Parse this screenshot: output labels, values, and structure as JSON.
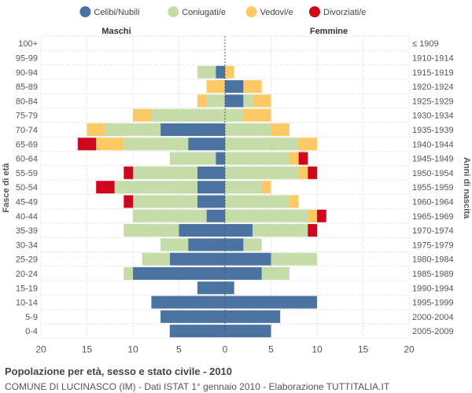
{
  "chart_data": {
    "type": "bar",
    "orientation": "horizontal-population-pyramid",
    "title": "Popolazione per età, sesso e stato civile - 2010",
    "subtitle": "COMUNE DI LUCINASCO (IM) - Dati ISTAT 1° gennaio 2010 - Elaborazione TUTTITALIA.IT",
    "left_header": "Maschi",
    "right_header": "Femmine",
    "ylabel_left": "Fasce di età",
    "ylabel_right": "Anni di nascita",
    "xlim": [
      -20,
      20
    ],
    "x_ticks": [
      -20,
      -15,
      -10,
      -5,
      0,
      5,
      10,
      15,
      20
    ],
    "x_tick_labels": [
      "20",
      "15",
      "10",
      "5",
      "0",
      "5",
      "10",
      "15",
      "20"
    ],
    "legend_position": "top",
    "series": [
      {
        "key": "celibi",
        "name": "Celibi/Nubili",
        "color": "#4a73a2"
      },
      {
        "key": "coniugati",
        "name": "Coniugati/e",
        "color": "#c5dba8"
      },
      {
        "key": "vedovi",
        "name": "Vedovi/e",
        "color": "#fdc965"
      },
      {
        "key": "divorziati",
        "name": "Divorziati/e",
        "color": "#d0061d"
      }
    ],
    "age_groups": [
      "100+",
      "95-99",
      "90-94",
      "85-89",
      "80-84",
      "75-79",
      "70-74",
      "65-69",
      "60-64",
      "55-59",
      "50-54",
      "45-49",
      "40-44",
      "35-39",
      "30-34",
      "25-29",
      "20-24",
      "15-19",
      "10-14",
      "5-9",
      "0-4"
    ],
    "birth_years": [
      "≤ 1909",
      "1910-1914",
      "1915-1919",
      "1920-1924",
      "1925-1929",
      "1930-1934",
      "1935-1939",
      "1940-1944",
      "1945-1949",
      "1950-1954",
      "1955-1959",
      "1960-1964",
      "1965-1969",
      "1970-1974",
      "1975-1979",
      "1980-1984",
      "1985-1989",
      "1990-1994",
      "1995-1999",
      "2000-2004",
      "2005-2009"
    ],
    "males": [
      [
        0,
        0,
        0,
        0
      ],
      [
        0,
        0,
        0,
        0
      ],
      [
        1,
        2,
        0,
        0
      ],
      [
        0,
        0,
        2,
        0
      ],
      [
        0,
        2,
        1,
        0
      ],
      [
        0,
        8,
        2,
        0
      ],
      [
        7,
        6,
        2,
        0
      ],
      [
        4,
        7,
        3,
        2
      ],
      [
        1,
        5,
        0,
        0
      ],
      [
        3,
        7,
        0,
        1
      ],
      [
        3,
        9,
        0,
        2
      ],
      [
        3,
        7,
        0,
        1
      ],
      [
        2,
        8,
        0,
        0
      ],
      [
        5,
        6,
        0,
        0
      ],
      [
        4,
        3,
        0,
        0
      ],
      [
        6,
        3,
        0,
        0
      ],
      [
        10,
        1,
        0,
        0
      ],
      [
        3,
        0,
        0,
        0
      ],
      [
        8,
        0,
        0,
        0
      ],
      [
        7,
        0,
        0,
        0
      ],
      [
        6,
        0,
        0,
        0
      ]
    ],
    "females": [
      [
        0,
        0,
        0,
        0
      ],
      [
        0,
        0,
        0,
        0
      ],
      [
        0,
        0,
        1,
        0
      ],
      [
        2,
        0,
        2,
        0
      ],
      [
        2,
        1,
        2,
        0
      ],
      [
        0,
        2,
        3,
        0
      ],
      [
        0,
        5,
        2,
        0
      ],
      [
        0,
        8,
        2,
        0
      ],
      [
        0,
        7,
        1,
        1
      ],
      [
        0,
        8,
        1,
        1
      ],
      [
        0,
        4,
        1,
        0
      ],
      [
        0,
        7,
        1,
        0
      ],
      [
        0,
        9,
        1,
        1
      ],
      [
        3,
        6,
        0,
        1
      ],
      [
        2,
        2,
        0,
        0
      ],
      [
        5,
        5,
        0,
        0
      ],
      [
        4,
        3,
        0,
        0
      ],
      [
        1,
        0,
        0,
        0
      ],
      [
        10,
        0,
        0,
        0
      ],
      [
        6,
        0,
        0,
        0
      ],
      [
        5,
        0,
        0,
        0
      ]
    ]
  }
}
